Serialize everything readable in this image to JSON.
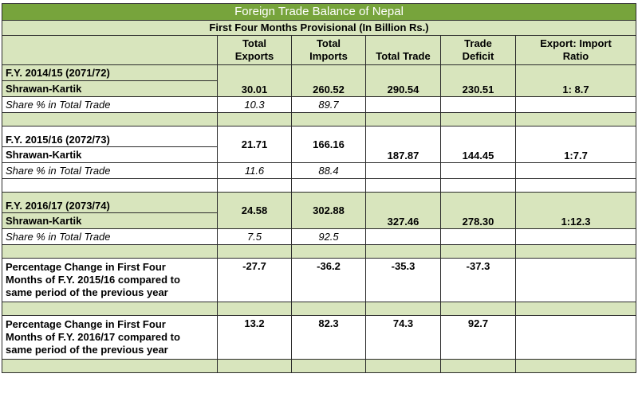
{
  "title": "Foreign Trade Balance of Nepal",
  "subtitle": "First Four Months Provisional (In Billion Rs.)",
  "headers": {
    "exports": [
      "Total",
      "Exports"
    ],
    "imports": [
      "Total",
      "Imports"
    ],
    "total_trade": "Total Trade",
    "deficit": [
      "Trade",
      "Deficit"
    ],
    "ratio": [
      "Export: Import",
      "Ratio"
    ]
  },
  "share_label": "Share % in Total Trade",
  "years": [
    {
      "fy": "F.Y. 2014/15 (2071/72)",
      "period": "Shrawan-Kartik",
      "exports": "30.01",
      "imports": "260.52",
      "total_trade": "290.54",
      "deficit": "230.51",
      "ratio": "1: 8.7",
      "share_exports": "10.3",
      "share_imports": "89.7"
    },
    {
      "fy": "F.Y. 2015/16 (2072/73)",
      "period": "Shrawan-Kartik",
      "exports": "21.71",
      "imports": "166.16",
      "total_trade": "187.87",
      "deficit": "144.45",
      "ratio": "1:7.7",
      "share_exports": "11.6",
      "share_imports": "88.4"
    },
    {
      "fy": "F.Y. 2016/17 (2073/74)",
      "period": "Shrawan-Kartik",
      "exports": "24.58",
      "imports": "302.88",
      "total_trade": "327.46",
      "deficit": "278.30",
      "ratio": "1:12.3",
      "share_exports": "7.5",
      "share_imports": "92.5"
    }
  ],
  "changes": [
    {
      "label_lines": [
        "Percentage Change in First Four",
        "Months of F.Y. 2015/16 compared to",
        "same period of the previous year"
      ],
      "exports": "-27.7",
      "imports": "-36.2",
      "total_trade": "-35.3",
      "deficit": "-37.3"
    },
    {
      "label_lines": [
        "Percentage Change in First Four",
        "Months of F.Y. 2016/17 compared to",
        "same period of the previous year"
      ],
      "exports": "13.2",
      "imports": "82.3",
      "total_trade": "74.3",
      "deficit": "92.7"
    }
  ],
  "colors": {
    "title_bg": "#77a43c",
    "band_bg": "#d8e5bd",
    "title_text": "#ffffff"
  }
}
